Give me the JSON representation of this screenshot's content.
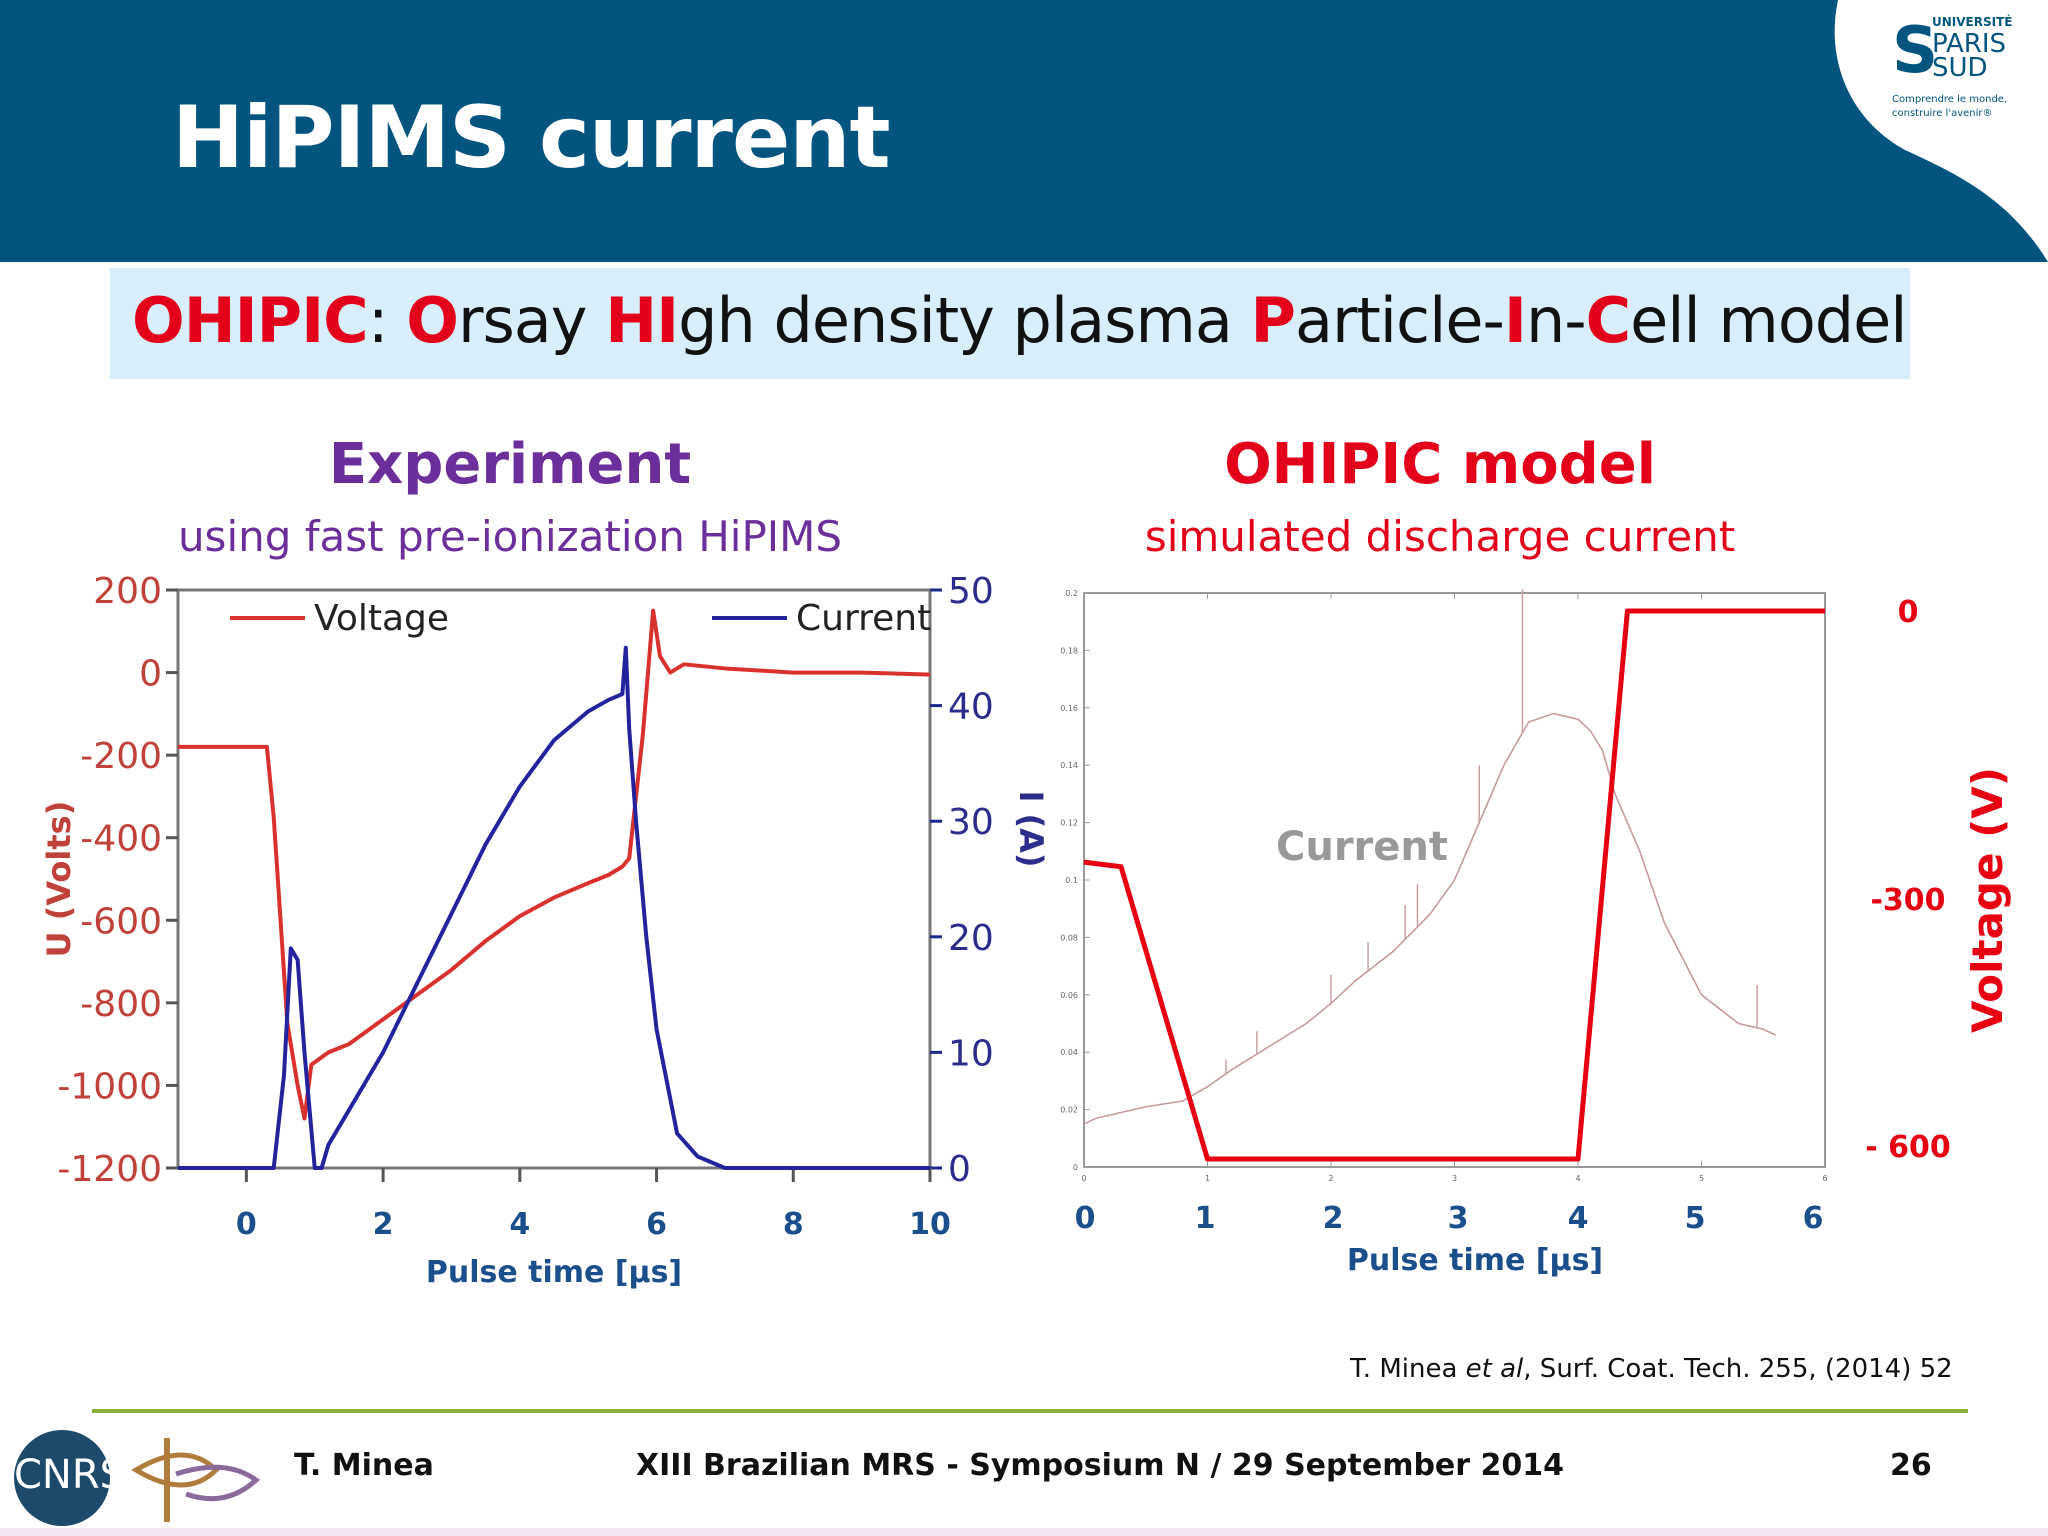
{
  "header": {
    "title": "HiPIMS current"
  },
  "logo": {
    "line1": "UNIVERSITÉ",
    "line2": "PARIS",
    "line3": "SUD",
    "tagline1": "Comprendre le monde,",
    "tagline2": "construire l'avenir®"
  },
  "banner": {
    "parts": [
      {
        "t": "OHIPIC",
        "red": true
      },
      {
        "t": ": ",
        "red": false
      },
      {
        "t": "O",
        "red": true
      },
      {
        "t": "rsay ",
        "red": false
      },
      {
        "t": "HI",
        "red": true
      },
      {
        "t": "gh density plasma ",
        "red": false
      },
      {
        "t": "P",
        "red": true
      },
      {
        "t": "article-",
        "red": false
      },
      {
        "t": "I",
        "red": true
      },
      {
        "t": "n-",
        "red": false
      },
      {
        "t": "C",
        "red": true
      },
      {
        "t": "ell model",
        "red": false
      }
    ]
  },
  "experiment": {
    "title": "Experiment",
    "subtitle": "using fast pre-ionization HiPIMS"
  },
  "simulation": {
    "title": "OHIPIC model",
    "subtitle": "simulated  discharge  current"
  },
  "chart_data": [
    {
      "type": "line",
      "title": "Experiment",
      "xlabel": "Pulse time [µs]",
      "ylabel": "U (Volts)",
      "y2label": "I (A)",
      "xlim": [
        -1,
        10
      ],
      "ylim": [
        -1200,
        200
      ],
      "y2lim": [
        0,
        50
      ],
      "x_ticks": [
        0,
        2,
        4,
        6,
        8,
        10
      ],
      "y_ticks": [
        200,
        0,
        -200,
        -400,
        -600,
        -800,
        -1000,
        -1200
      ],
      "y2_ticks": [
        50,
        40,
        30,
        20,
        10,
        0
      ],
      "legend": "top",
      "series": [
        {
          "name": "Voltage",
          "axis": "left",
          "color": "#d9322e",
          "x": [
            -1,
            -0.5,
            0,
            0.3,
            0.4,
            0.5,
            0.6,
            0.75,
            0.85,
            0.95,
            1.2,
            1.5,
            2,
            2.5,
            3,
            3.5,
            4,
            4.5,
            5,
            5.3,
            5.5,
            5.6,
            5.8,
            5.95,
            6.05,
            6.2,
            6.4,
            7,
            8,
            9,
            10
          ],
          "y": [
            -180,
            -180,
            -180,
            -180,
            -350,
            -600,
            -850,
            -1000,
            -1080,
            -950,
            -920,
            -900,
            -840,
            -780,
            -720,
            -650,
            -590,
            -545,
            -510,
            -490,
            -470,
            -450,
            -150,
            150,
            40,
            0,
            20,
            10,
            0,
            0,
            -5
          ]
        },
        {
          "name": "Current",
          "axis": "right",
          "color": "#23239e",
          "x": [
            -1,
            -0.5,
            0,
            0.4,
            0.55,
            0.65,
            0.75,
            0.85,
            1.0,
            1.1,
            1.2,
            1.5,
            2,
            2.5,
            3,
            3.5,
            4,
            4.5,
            5,
            5.3,
            5.5,
            5.55,
            5.6,
            5.7,
            5.85,
            6,
            6.3,
            6.6,
            7,
            8,
            9,
            10
          ],
          "y": [
            0,
            0,
            0,
            0,
            8,
            19,
            18,
            10,
            0,
            0,
            2,
            5,
            10,
            16,
            22,
            28,
            33,
            37,
            39.5,
            40.5,
            41,
            45,
            38,
            30,
            20,
            12,
            3,
            1,
            0,
            0,
            0,
            0
          ]
        }
      ],
      "annotations": {
        "voltage_label": "Voltage",
        "current_label": "Current"
      }
    },
    {
      "type": "line",
      "title": "OHIPIC model",
      "xlabel": "Pulse time [µs]",
      "y2label": "Voltage (V)",
      "xlim": [
        0,
        6
      ],
      "ylim": [
        0,
        0.2
      ],
      "y2lim": [
        -600,
        0
      ],
      "x_ticks": [
        0,
        1,
        2,
        3,
        4,
        5,
        6
      ],
      "x_ticks_small": [
        0,
        1,
        2,
        3,
        4,
        5,
        6
      ],
      "y_ticks_small": [
        "0",
        "0.02",
        "0.04",
        "0.06",
        "0.08",
        "0.1",
        "0.12",
        "0.14",
        "0.16",
        "0.18",
        "0.2"
      ],
      "y2_ticks": [
        {
          "label": "0",
          "value": 0
        },
        {
          "label": "-300",
          "value": -300
        },
        {
          "label": "- 600",
          "value": -600
        }
      ],
      "series": [
        {
          "name": "Current",
          "axis": "left",
          "color": "#c59a9a",
          "x": [
            0,
            0.1,
            0.3,
            0.5,
            0.8,
            1.0,
            1.2,
            1.5,
            1.8,
            2.0,
            2.2,
            2.5,
            2.8,
            3.0,
            3.2,
            3.4,
            3.6,
            3.8,
            4.0,
            4.1,
            4.2,
            4.3,
            4.5,
            4.7,
            5.0,
            5.3,
            5.5,
            5.6
          ],
          "y": [
            0.015,
            0.017,
            0.019,
            0.021,
            0.023,
            0.028,
            0.034,
            0.042,
            0.05,
            0.057,
            0.065,
            0.075,
            0.088,
            0.1,
            0.12,
            0.14,
            0.155,
            0.158,
            0.156,
            0.152,
            0.145,
            0.13,
            0.11,
            0.085,
            0.06,
            0.05,
            0.048,
            0.046
          ]
        },
        {
          "name": "Voltage",
          "axis": "right",
          "color": "#e60012",
          "x": [
            0,
            0.3,
            1.0,
            4.0,
            4.4,
            6.0
          ],
          "y": [
            -275,
            -280,
            -600,
            -600,
            0,
            0
          ]
        }
      ],
      "annotations": {
        "current_label": "Current"
      }
    }
  ],
  "citation": {
    "pre": "T. Minea ",
    "italic": "et al",
    "post": ", Surf. Coat. Tech. 255, (2014)  52"
  },
  "footer": {
    "cnrs": "CNRS",
    "author": "T. Minea",
    "event": "XIII Brazilian MRS - Symposium N / 29 September 2014",
    "page": "26"
  },
  "colors": {
    "header": "#035580",
    "banner": "#d9eefb",
    "accent_red": "#e2001a",
    "purple": "#6b2e9a",
    "axis_blue": "#1b4f8c",
    "footer_line": "#8bb23b"
  }
}
